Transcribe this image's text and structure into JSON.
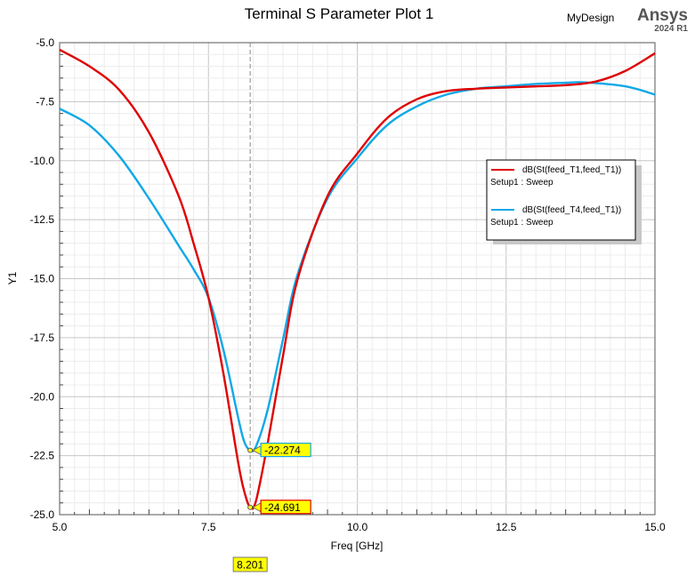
{
  "header": {
    "design_name": "MyDesign",
    "brand": "Ansys",
    "version": "2024 R1"
  },
  "chart_data": {
    "type": "line",
    "title": "Terminal S Parameter Plot 1",
    "xlabel": "Freq [GHz]",
    "ylabel": "Y1",
    "xlim": [
      5.0,
      15.0
    ],
    "ylim": [
      -25.0,
      -5.0
    ],
    "x_ticks": [
      "5.0",
      "7.5",
      "10.0",
      "12.5",
      "15.0"
    ],
    "y_ticks": [
      "-5.0",
      "-7.5",
      "-10.0",
      "-12.5",
      "-15.0",
      "-17.5",
      "-20.0",
      "-22.5",
      "-25.0"
    ],
    "grid": true,
    "legend_position": "right",
    "series": [
      {
        "name": "dB(St(feed_T1,feed_T1))",
        "setup": "Setup1 : Sweep",
        "color": "#e00000",
        "x": [
          5.0,
          5.5,
          6.0,
          6.5,
          7.0,
          7.25,
          7.5,
          7.75,
          8.0,
          8.1,
          8.201,
          8.3,
          8.5,
          8.75,
          9.0,
          9.5,
          10.0,
          10.5,
          11.0,
          11.5,
          12.0,
          12.5,
          13.0,
          13.5,
          14.0,
          14.5,
          15.0
        ],
        "y": [
          -5.3,
          -6.0,
          -7.0,
          -8.8,
          -11.5,
          -13.5,
          -15.8,
          -19.0,
          -22.8,
          -24.0,
          -24.691,
          -24.4,
          -21.9,
          -18.3,
          -15.0,
          -11.5,
          -9.7,
          -8.2,
          -7.4,
          -7.05,
          -6.95,
          -6.9,
          -6.85,
          -6.8,
          -6.65,
          -6.2,
          -5.45
        ]
      },
      {
        "name": "dB(St(feed_T4,feed_T1))",
        "setup": "Setup1 : Sweep",
        "color": "#10a8e8",
        "x": [
          5.0,
          5.5,
          6.0,
          6.5,
          7.0,
          7.25,
          7.5,
          7.75,
          8.0,
          8.1,
          8.201,
          8.3,
          8.5,
          8.75,
          9.0,
          9.5,
          10.0,
          10.5,
          11.0,
          11.5,
          12.0,
          12.5,
          13.0,
          13.5,
          13.8,
          14.5,
          15.0
        ],
        "y": [
          -7.8,
          -8.5,
          -9.8,
          -11.6,
          -13.6,
          -14.6,
          -15.8,
          -18.0,
          -20.9,
          -21.9,
          -22.274,
          -22.1,
          -20.5,
          -17.6,
          -14.8,
          -11.6,
          -9.9,
          -8.5,
          -7.7,
          -7.2,
          -6.95,
          -6.85,
          -6.75,
          -6.7,
          -6.68,
          -6.85,
          -7.2
        ]
      }
    ],
    "markers": [
      {
        "label": "-24.691",
        "x": 8.201,
        "y": -24.691
      },
      {
        "label": "-22.274",
        "x": 8.201,
        "y": -22.274
      }
    ],
    "cursor": {
      "x": 8.201,
      "label": "8.201"
    }
  }
}
